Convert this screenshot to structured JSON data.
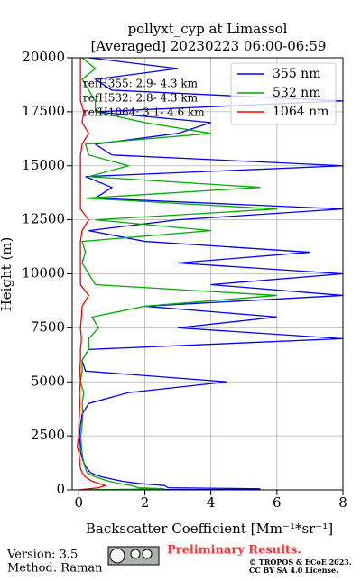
{
  "chart_data": {
    "type": "line",
    "orientation": "vertical-profile",
    "title": "pollyxt_cyp at Limassol",
    "subtitle": "[Averaged] 20230223 06:00-06:59",
    "x_label": "Backscatter Coefficient [Mm⁻¹*sr⁻¹]",
    "y_label": "Height (m)",
    "xlim": [
      -0.2,
      8
    ],
    "xticks": [
      0,
      2,
      4,
      6,
      8
    ],
    "ylim": [
      0,
      20000
    ],
    "yticks": [
      0,
      2500,
      5000,
      7500,
      10000,
      12500,
      15000,
      17500,
      20000
    ],
    "grid": true,
    "legend": "upper right",
    "y": [
      0,
      50,
      100,
      200,
      300,
      400,
      500,
      600,
      700,
      800,
      1000,
      1250,
      1500,
      1750,
      2000,
      2500,
      3000,
      3500,
      4000,
      4500,
      5000,
      5500,
      6000,
      6500,
      7000,
      7500,
      8000,
      8500,
      9000,
      9500,
      10000,
      10500,
      11000,
      11500,
      12000,
      12500,
      13000,
      13500,
      14000,
      14500,
      15000,
      15500,
      16000,
      16500,
      17000,
      17500,
      18000,
      18500,
      19000,
      19500,
      20000
    ],
    "series": [
      {
        "name": "355 nm",
        "color": "#0000ff",
        "values": [
          0.1,
          5.5,
          2.7,
          2.6,
          1.8,
          1.3,
          1.0,
          0.7,
          0.5,
          0.35,
          0.25,
          0.15,
          0.1,
          0.05,
          0.05,
          0.02,
          0.05,
          0.1,
          0.3,
          1.5,
          4.5,
          0.2,
          0.1,
          0.3,
          8,
          3,
          6,
          2,
          8,
          4,
          8,
          3,
          7,
          2,
          0.3,
          3,
          8,
          0.5,
          1,
          0.2,
          8,
          1,
          0.5,
          3,
          4,
          0.5,
          8,
          1,
          0.5,
          3,
          0.3
        ]
      },
      {
        "name": "532 nm",
        "color": "#00aa00",
        "values": [
          0,
          2.6,
          1.8,
          1.6,
          1.2,
          0.9,
          0.7,
          0.5,
          0.35,
          0.25,
          0.2,
          0.15,
          0.12,
          0.1,
          0.08,
          0.06,
          0.1,
          0.12,
          0.1,
          0.15,
          0.05,
          0.1,
          0.1,
          0.3,
          0.3,
          0.6,
          0.4,
          2,
          6,
          0.5,
          0.3,
          0.1,
          0.2,
          0.1,
          4,
          0.5,
          6,
          0.2,
          5.5,
          0.3,
          1.5,
          0.3,
          0.2,
          4,
          2,
          0.5,
          0.5,
          0.3,
          0.1,
          0.5,
          0.1
        ]
      },
      {
        "name": "1064 nm",
        "color": "#ff0000",
        "values": [
          0,
          0.3,
          0.6,
          0.8,
          0.6,
          0.4,
          0.3,
          0.2,
          0.15,
          0.1,
          0.05,
          0.03,
          0.02,
          0,
          -0.05,
          0,
          0,
          0.02,
          0.03,
          0.02,
          0.05,
          0.03,
          0.05,
          0.05,
          0.08,
          0.05,
          0.08,
          0.1,
          0.3,
          0.05,
          0.05,
          0.05,
          0.05,
          0.05,
          0.1,
          0.3,
          0.05,
          0.05,
          0.05,
          0.05,
          0.05,
          0.05,
          0.1,
          0.3,
          0.1,
          0.15,
          0.05,
          0.05,
          0.05,
          0.05,
          0.05
        ]
      }
    ],
    "annotations": [
      "refH355:  2.9- 4.3 km",
      "refH532:  2.8- 4.3 km",
      "refH1064:  3.1- 4.6 km"
    ]
  },
  "footer": {
    "version": "Version: 3.5",
    "method": "Method: Raman",
    "status": "Preliminary Results.",
    "copyright": "© TROPOS & ECoE 2023.",
    "license": "CC BY SA 4.0 License."
  }
}
